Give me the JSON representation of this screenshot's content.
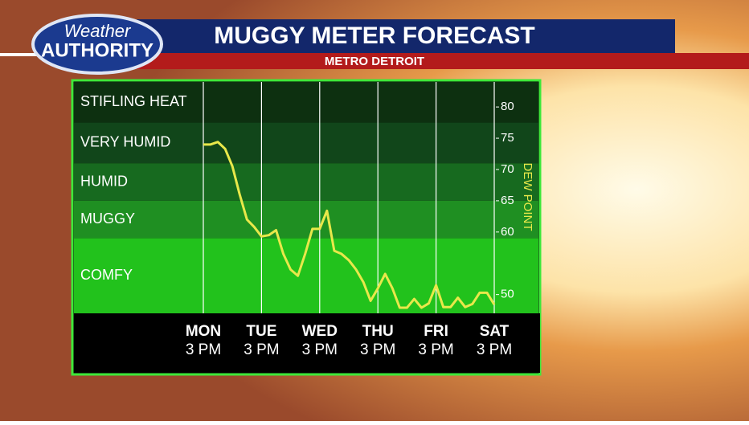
{
  "logo": {
    "line1": "Weather",
    "line2": "AUTHORITY"
  },
  "chart_data": {
    "type": "line",
    "title": "MUGGY METER FORECAST",
    "subtitle": "METRO DETROIT",
    "y_axis_label": "DEW POINT",
    "categories": [
      "MON",
      null,
      null,
      null,
      null,
      null,
      null,
      null,
      "TUE",
      null,
      null,
      null,
      null,
      null,
      null,
      null,
      "WED",
      null,
      null,
      null,
      null,
      null,
      null,
      null,
      "THU",
      null,
      null,
      null,
      null,
      null,
      null,
      null,
      "FRI",
      null,
      null,
      null,
      null,
      null,
      null,
      null,
      "SAT"
    ],
    "category_times": [
      "3 PM",
      null,
      null,
      null,
      null,
      null,
      null,
      null,
      "3 PM",
      null,
      null,
      null,
      null,
      null,
      null,
      null,
      "3 PM",
      null,
      null,
      null,
      null,
      null,
      null,
      null,
      "3 PM",
      null,
      null,
      null,
      null,
      null,
      null,
      null,
      "3 PM",
      null,
      null,
      null,
      null,
      null,
      null,
      null,
      "3 PM"
    ],
    "values": [
      74,
      74,
      74.4,
      73.3,
      70.5,
      66,
      62,
      60.8,
      59.3,
      59.5,
      60.3,
      56.5,
      54,
      53,
      56.5,
      60.5,
      60.5,
      63.4,
      57,
      56.5,
      55.5,
      54,
      52,
      49,
      51,
      53.3,
      51,
      47.9,
      47.9,
      49.3,
      47.9,
      48.6,
      51.5,
      48,
      48,
      49.5,
      48,
      48.5,
      50.3,
      50.3,
      48.4
    ],
    "color": "#e8e84a",
    "ylim": [
      47,
      84
    ],
    "yticks": [
      50,
      60,
      65,
      70,
      75,
      80
    ],
    "zones": [
      {
        "label": "STIFLING HEAT",
        "from": 77.5,
        "to": 84,
        "color": "#0d3010"
      },
      {
        "label": "VERY HUMID",
        "from": 71,
        "to": 77.5,
        "color": "#11461a"
      },
      {
        "label": "HUMID",
        "from": 65,
        "to": 71,
        "color": "#176a1f"
      },
      {
        "label": "MUGGY",
        "from": 59,
        "to": 65,
        "color": "#1f8f22"
      },
      {
        "label": "COMFY",
        "from": 47,
        "to": 59,
        "color": "#22c21c"
      }
    ]
  }
}
